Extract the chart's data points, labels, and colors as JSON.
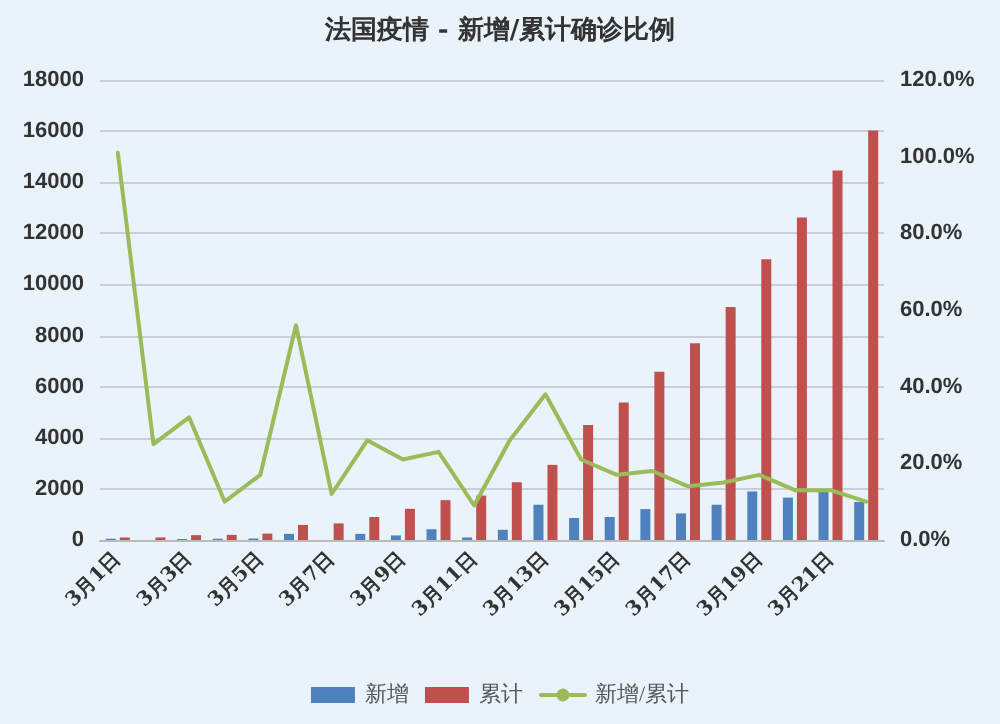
{
  "chart_data": {
    "type": "bar",
    "title": "法国疫情 - 新增/累计确诊比例",
    "categories": [
      "3月1日",
      null,
      "3月3日",
      null,
      "3月5日",
      null,
      "3月7日",
      null,
      "3月9日",
      null,
      "3月11日",
      null,
      "3月13日",
      null,
      "3月15日",
      null,
      "3月17日",
      null,
      "3月19日",
      null,
      "3月21日",
      null
    ],
    "series": [
      {
        "name": "新增",
        "color": "#4f81bd",
        "values": [
          50,
          0,
          40,
          50,
          60,
          240,
          0,
          240,
          180,
          420,
          100,
          400,
          1380,
          860,
          900,
          1210,
          1040,
          1380,
          1900,
          1660,
          1900,
          1490
        ]
      },
      {
        "name": "累计",
        "color": "#c0504d",
        "values": [
          100,
          100,
          190,
          200,
          250,
          590,
          650,
          900,
          1220,
          1560,
          1740,
          2260,
          2940,
          4500,
          5380,
          6580,
          7700,
          9120,
          10990,
          12620,
          14460,
          16020
        ]
      },
      {
        "name": "新增/累计",
        "type": "line",
        "axis": "y2",
        "color": "#9bbb59",
        "values": [
          101,
          25,
          32,
          10,
          17,
          56,
          12,
          26,
          21,
          23,
          9,
          26,
          38,
          21,
          17,
          18,
          14,
          15,
          17,
          13,
          13,
          10
        ]
      }
    ],
    "ylim": [
      0,
      18000
    ],
    "yticks": [
      0,
      2000,
      4000,
      6000,
      8000,
      10000,
      12000,
      14000,
      16000,
      18000
    ],
    "y2lim": [
      0,
      120
    ],
    "y2ticks": [
      {
        "value": 0,
        "label": "0.0%"
      },
      {
        "value": 20,
        "label": "20.0%"
      },
      {
        "value": 40,
        "label": "40.0%"
      },
      {
        "value": 60,
        "label": "60.0%"
      },
      {
        "value": 80,
        "label": "80.0%"
      },
      {
        "value": 100,
        "label": "100.0%"
      },
      {
        "value": 120,
        "label": "120.0%"
      }
    ],
    "grid": "y",
    "legend": "bottom",
    "marker": "none",
    "line_style": "solid"
  }
}
